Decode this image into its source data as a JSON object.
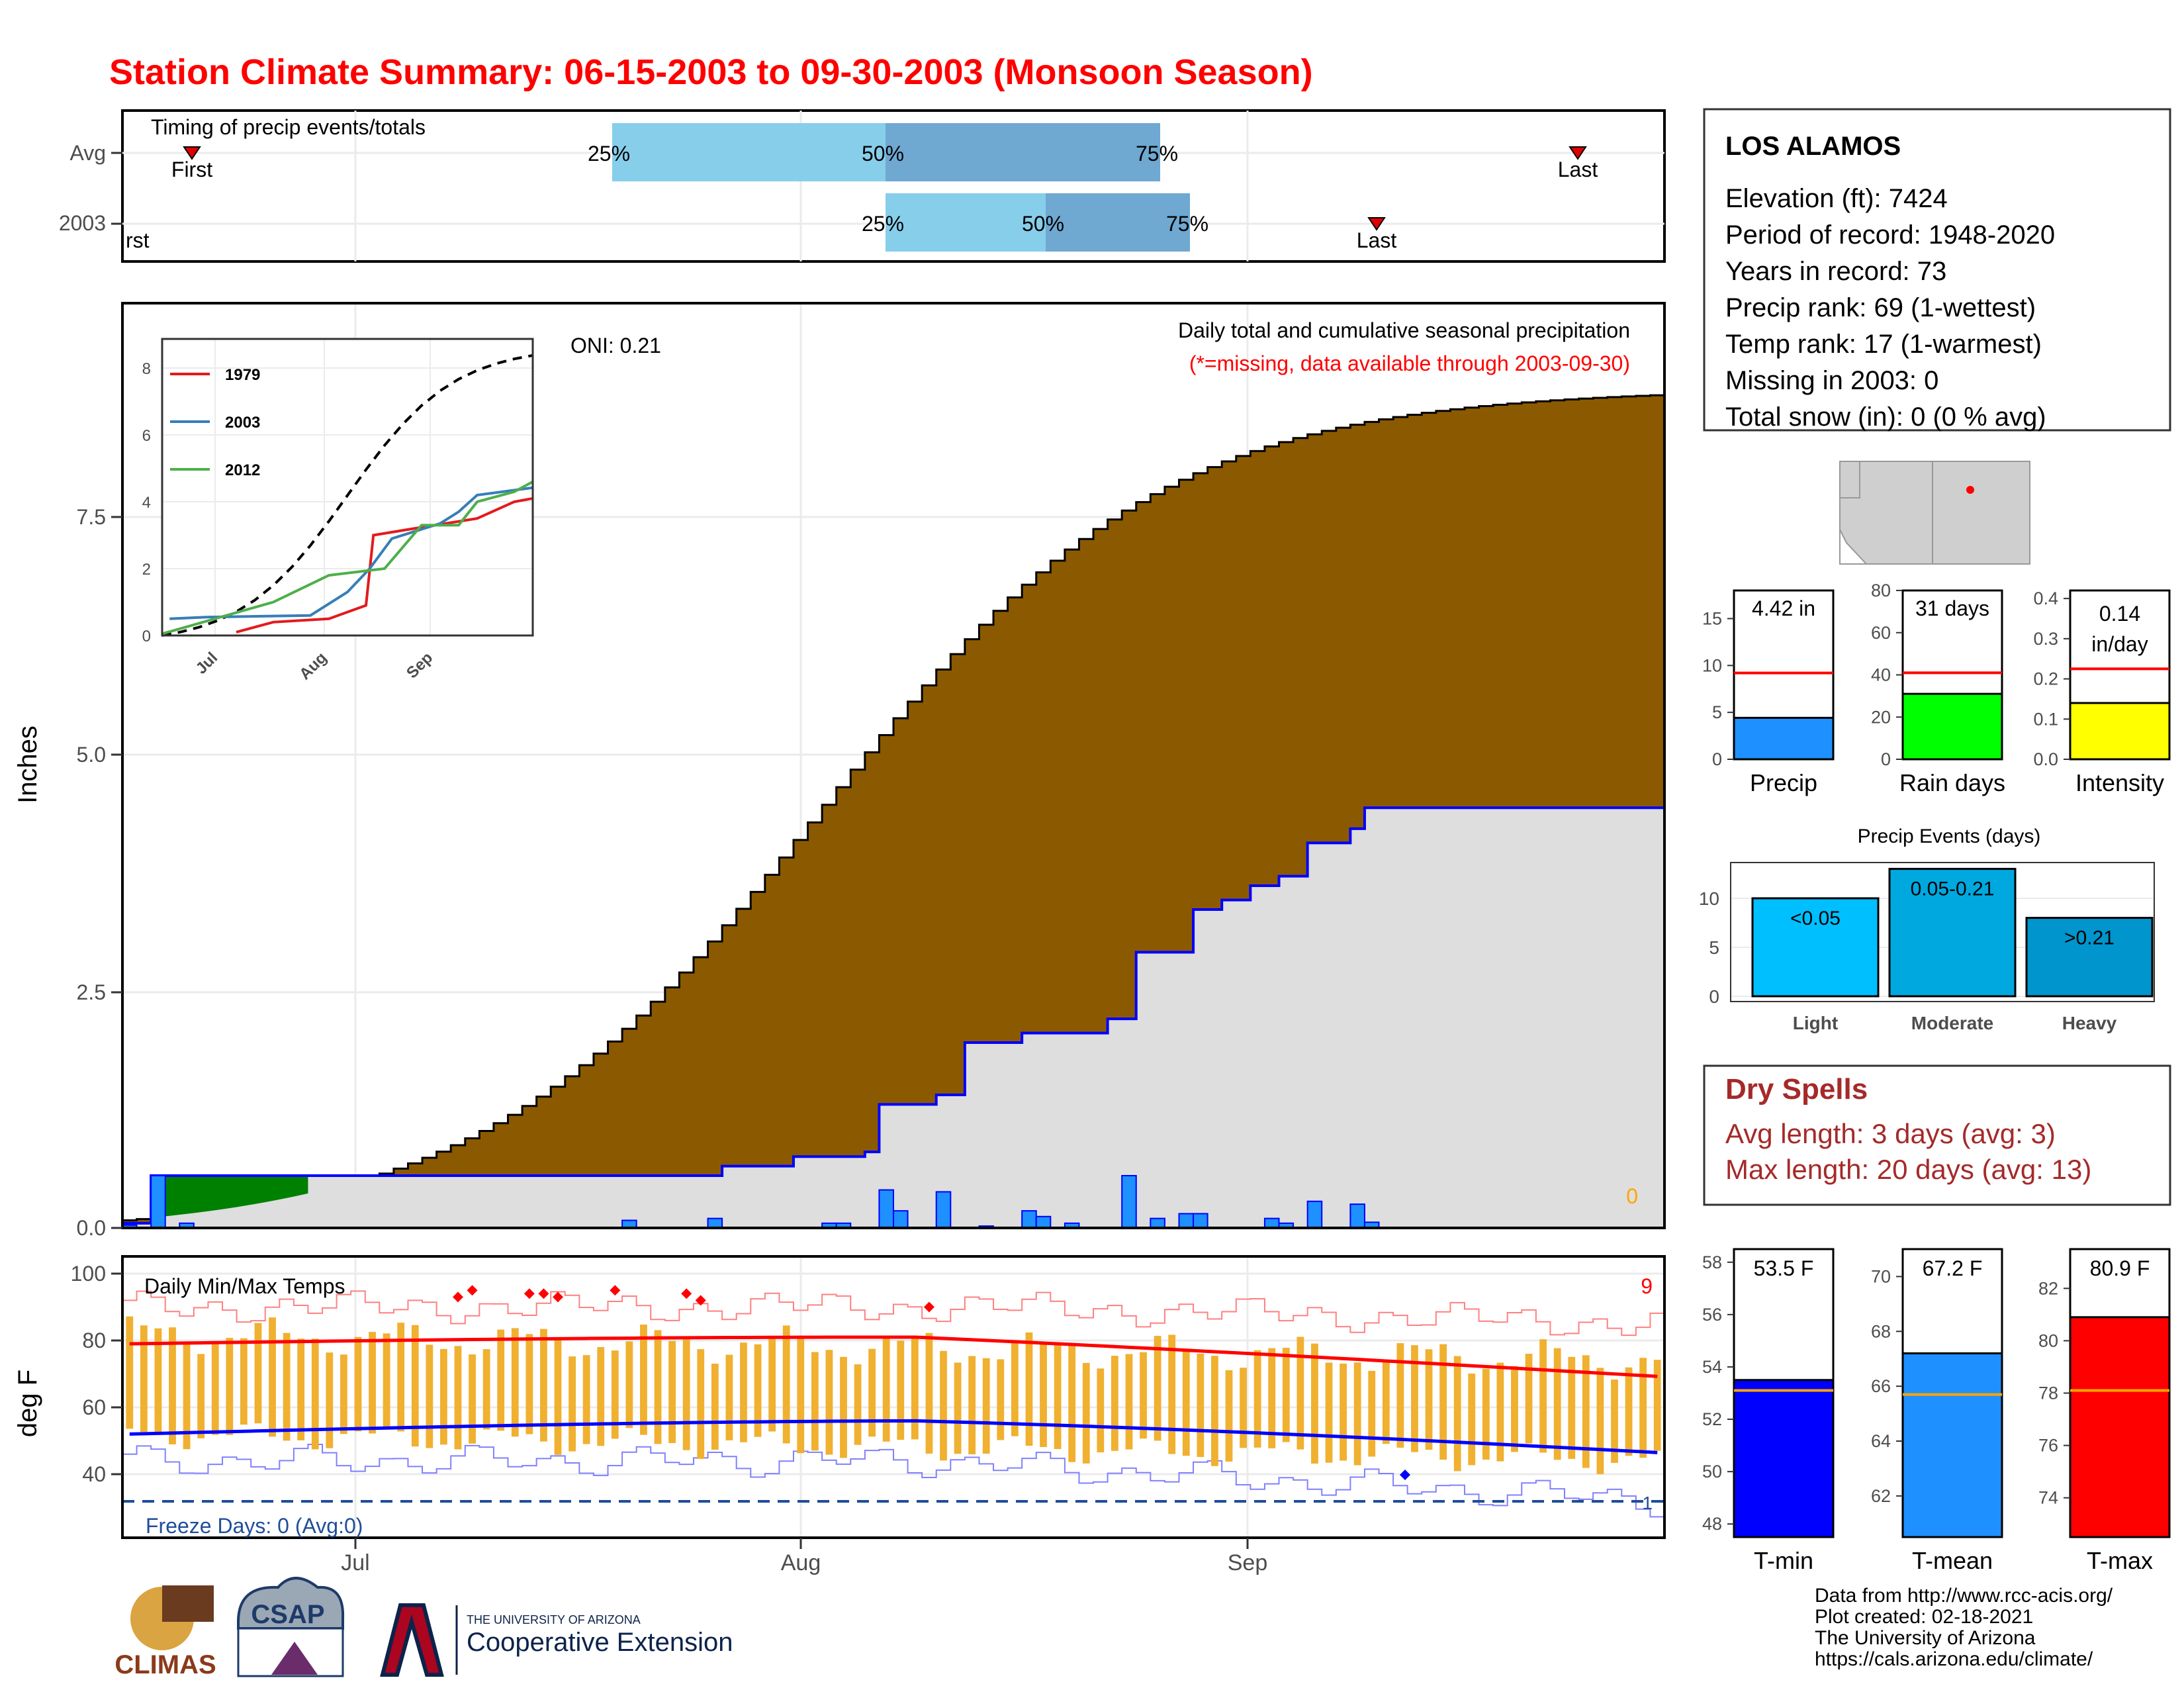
{
  "title": "Station Climate Summary: 06-15-2003 to 09-30-2003 (Monsoon Season)",
  "colors": {
    "title": "#ff0000",
    "accumulated": "#8b5a00",
    "normal_fill": "#dedede",
    "blue_line": "#0000ff",
    "daily_bar": "#1e90ff",
    "green": "#008000",
    "light_blue": "#87ceeb",
    "steel_blue": "#6fa8d1",
    "temp_bar": "#f0b030",
    "red": "#ff0000",
    "dryspell": "#a52a2a"
  },
  "timing_panel": {
    "label": "Timing of precip events/totals",
    "rows": [
      {
        "name": "Avg",
        "first_label": "First",
        "last_label": "Last",
        "p25": "25%",
        "p50": "50%",
        "p75": "75%"
      },
      {
        "name": "2003",
        "first_label": "First",
        "last_label": "Last",
        "p25": "25%",
        "p50": "50%",
        "p75": "75%"
      }
    ]
  },
  "station": {
    "name": "LOS ALAMOS",
    "lines": [
      "Elevation (ft): 7424",
      "Period of record: 1948-2020",
      "Years in record: 73",
      "Precip rank: 69 (1-wettest)",
      "Temp rank: 17 (1-warmest)",
      "Missing in 2003: 0",
      "Total snow (in): 0 (0 % avg)"
    ]
  },
  "precip_panel": {
    "ylabel": "Inches",
    "note": "Daily total and cumulative seasonal precipitation",
    "missing_note": "(*=missing, data available through 2003-09-30)",
    "oni": "ONI: 0.21",
    "missing_count": "0",
    "yticks": [
      "0.0",
      "2.5",
      "5.0",
      "7.5"
    ]
  },
  "inset": {
    "legend": [
      "1979",
      "2003",
      "2012"
    ],
    "yticks": [
      "0",
      "2",
      "4",
      "6",
      "8"
    ],
    "xticks": [
      "Jul",
      "Aug",
      "Sep"
    ]
  },
  "gauges": [
    {
      "value": "4.42 in",
      "label": "Precip",
      "ticks": [
        "0",
        "5",
        "10",
        "15"
      ]
    },
    {
      "value": "31 days",
      "label": "Rain days",
      "ticks": [
        "0",
        "20",
        "40",
        "60",
        "80"
      ]
    },
    {
      "value": "0.14",
      "value2": "in/day",
      "label": "Intensity",
      "ticks": [
        "0.0",
        "0.1",
        "0.2",
        "0.3",
        "0.4"
      ]
    }
  ],
  "events": {
    "title": "Precip Events (days)",
    "bars": [
      {
        "label": "Light",
        "inner": "<0.05",
        "value": 10
      },
      {
        "label": "Moderate",
        "inner": "0.05-0.21",
        "value": 13
      },
      {
        "label": "Heavy",
        "inner": ">0.21",
        "value": 8
      }
    ],
    "ticks": [
      "0",
      "5",
      "10"
    ]
  },
  "dry_spells": {
    "title": "Dry Spells",
    "avg": "Avg length: 3 days (avg: 3)",
    "max": "Max length: 20 days (avg: 13)"
  },
  "temp_panel": {
    "ylabel": "deg F",
    "label": "Daily Min/Max Temps",
    "freeze": "Freeze Days: 0 (Avg:0)",
    "hot_count": "9",
    "cold_count": "1",
    "yticks": [
      "40",
      "60",
      "80",
      "100"
    ],
    "xticks": [
      "Jul",
      "Aug",
      "Sep"
    ]
  },
  "temp_gauges": [
    {
      "value": "53.5 F",
      "label": "T-min",
      "ticks": [
        "48",
        "50",
        "52",
        "54",
        "56",
        "58"
      ]
    },
    {
      "value": "67.2 F",
      "label": "T-mean",
      "ticks": [
        "62",
        "64",
        "66",
        "68",
        "70"
      ]
    },
    {
      "value": "80.9 F",
      "label": "T-max",
      "ticks": [
        "74",
        "76",
        "78",
        "80",
        "82"
      ]
    }
  ],
  "credits": [
    "Data from http://www.rcc-acis.org/",
    "Plot created: 02-18-2021",
    "The University of Arizona",
    "https://cals.arizona.edu/climate/"
  ],
  "logos": {
    "climas": "CLIMAS",
    "csap": "CSAP",
    "ua_small": "THE UNIVERSITY OF ARIZONA",
    "ua_big": "Cooperative Extension"
  },
  "chart_data": [
    {
      "type": "area",
      "title": "Daily total and cumulative seasonal precipitation",
      "ylabel": "Inches",
      "ylim": [
        0,
        9.8
      ],
      "x": "days from 06-15 to 09-30",
      "series": [
        {
          "name": "accumulated (2003)",
          "final_value": 8.9
        },
        {
          "name": "blue line",
          "final_value": 4.42
        }
      ]
    },
    {
      "type": "bar",
      "title": "Precip Events (days)",
      "categories": [
        "Light",
        "Moderate",
        "Heavy"
      ],
      "values": [
        10,
        13,
        8
      ]
    },
    {
      "type": "bar",
      "title": "Daily Min/Max Temps",
      "ylabel": "deg F",
      "ylim": [
        30,
        101
      ]
    }
  ]
}
